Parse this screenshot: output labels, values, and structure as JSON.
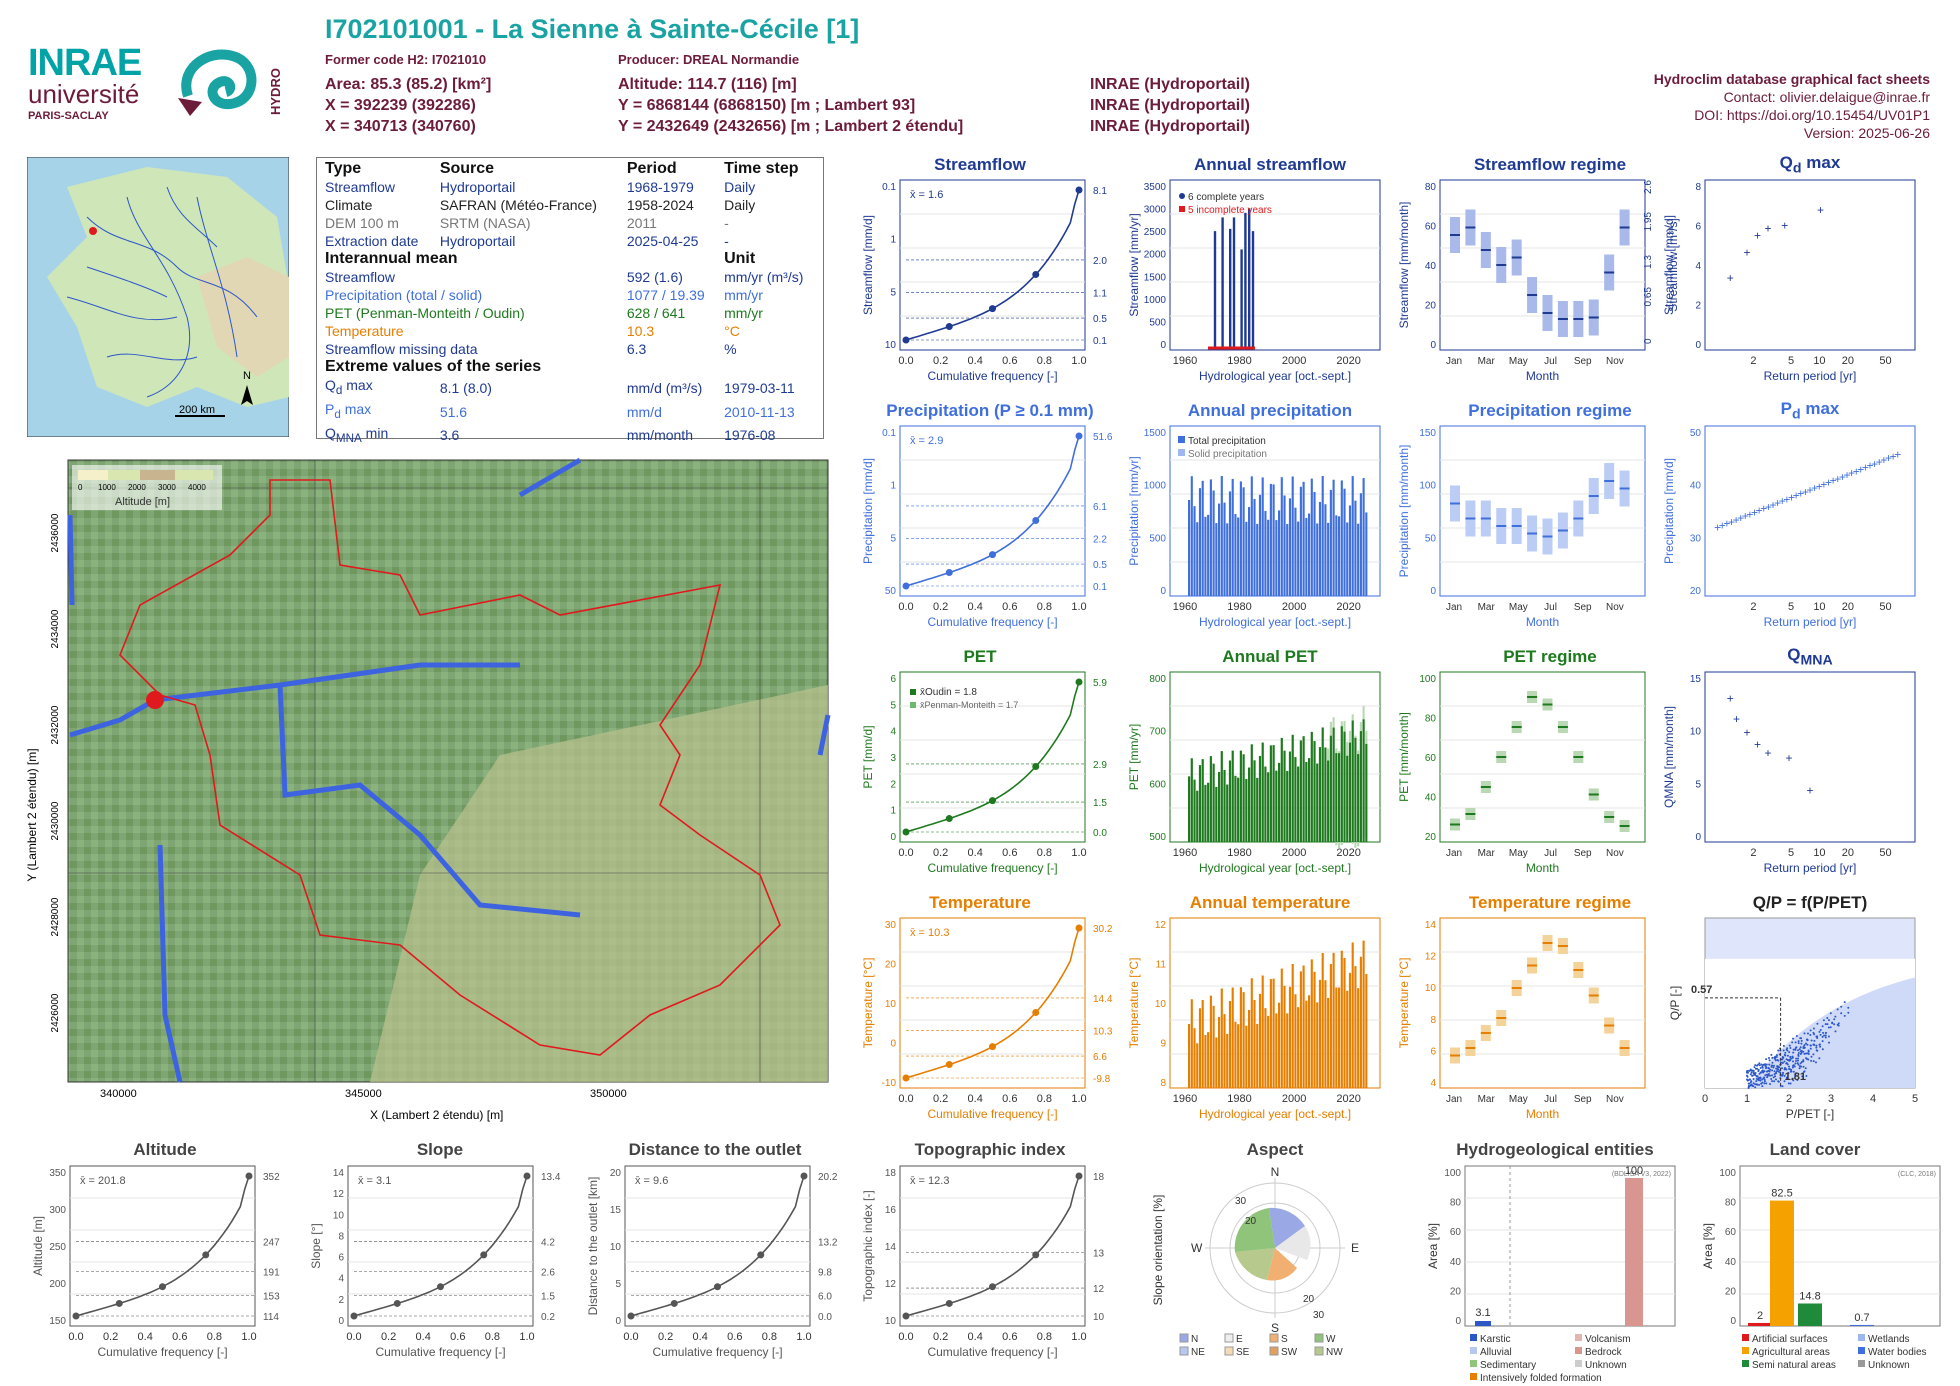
{
  "colors": {
    "streamflow": "#1f3a93",
    "precip": "#3f6fdc",
    "pet": "#1e7a1e",
    "temp": "#e67e00",
    "title_teal": "#1aa3a3",
    "basin": "#e0191d"
  },
  "header": {
    "title": "I702101001 - La Sienne à Sainte-Cécile [1]",
    "former_code": "Former code H2: I7021010",
    "producer": "Producer: DREAL Normandie",
    "area": "Area: 85.3 (85.2) [km²]",
    "altitude": "Altitude: 114.7 (116) [m]",
    "x93": "X = 392239 (392286)",
    "y93": "Y = 6868144 (6868150) [m ; Lambert 93]",
    "x2e": "X = 340713 (340760)",
    "y2e": "Y = 2432649 (2432656) [m ; Lambert 2 étendu]",
    "src1": "INRAE (Hydroportail)",
    "src2": "INRAE (Hydroportail)",
    "src3": "INRAE (Hydroportail)",
    "db": "Hydroclim database graphical fact sheets",
    "contact": "Contact: olivier.delaigue@inrae.fr",
    "doi": "DOI: https://doi.org/10.15454/UV01P1",
    "version": "Version: 2025-06-26"
  },
  "logos": {
    "inrae": "INRAE",
    "universite": "université",
    "paris": "PARIS-SACLAY",
    "hydro": "HYDRO"
  },
  "locmap": {
    "scale": "200 km",
    "north": "N"
  },
  "info": {
    "h_type": "Type",
    "h_source": "Source",
    "h_period": "Period",
    "h_timestep": "Time step",
    "rows": [
      {
        "type": "Streamflow",
        "source": "Hydroportail",
        "period": "1968-1979",
        "step": "Daily"
      },
      {
        "type": "Climate",
        "source": "SAFRAN (Météo-France)",
        "period": "1958-2024",
        "step": "Daily"
      },
      {
        "type": "DEM 100 m",
        "source": "SRTM (NASA)",
        "period": "2011",
        "step": "-"
      },
      {
        "type": "Extraction date",
        "source": "Hydroportail",
        "period": "2025-04-25",
        "step": "-"
      }
    ],
    "h_inter": "Interannual mean",
    "h_unit": "Unit",
    "mean": [
      {
        "k": "Streamflow",
        "v": "592 (1.6)",
        "u": "mm/yr (m³/s)"
      },
      {
        "k": "Precipitation (total / solid)",
        "v": "1077 / 19.39",
        "u": "mm/yr"
      },
      {
        "k": "PET (Penman-Monteith / Oudin)",
        "v": "628 / 641",
        "u": "mm/yr"
      },
      {
        "k": "Temperature",
        "v": "10.3",
        "u": "°C"
      },
      {
        "k": "Streamflow missing data",
        "v": "6.3",
        "u": "%"
      }
    ],
    "h_extreme": "Extreme values of the series",
    "ext": [
      {
        "k": "Q",
        "sub": "d",
        "k2": " max",
        "v": "8.1 (8.0)",
        "u": "mm/d (m³/s)",
        "d": "1979-03-11"
      },
      {
        "k": "P",
        "sub": "d",
        "k2": " max",
        "v": "51.6",
        "u": "mm/d",
        "d": "2010-11-13"
      },
      {
        "k": "Q",
        "sub": "MNA",
        "k2": " min",
        "v": "3.6",
        "u": "mm/month",
        "d": "1976-08"
      }
    ]
  },
  "bigmap": {
    "legend_title": "Altitude [m]",
    "legend_ticks": [
      "0",
      "1000",
      "2000",
      "3000",
      "4000"
    ],
    "xticks": [
      "340000",
      "345000",
      "350000"
    ],
    "yticks": [
      "2436000",
      "2434000",
      "2432000",
      "2430000",
      "2428000",
      "2426000"
    ],
    "xlabel": "X (Lambert 2 étendu) [m]",
    "ylabel": "Y (Lambert 2 étendu) [m]"
  },
  "panels": {
    "streamflow": {
      "title": "Streamflow",
      "mean": "x̄ = 1.6",
      "ylabel": "Streamflow [mm/d]",
      "xlabel": "Cumulative frequency [-]",
      "right": [
        "8.1",
        "2.0",
        "1.1",
        "0.5",
        "0.1"
      ],
      "left": [
        "10",
        "5",
        "1",
        "0.1"
      ]
    },
    "annual_streamflow": {
      "title": "Annual streamflow",
      "ylabel": "Streamflow [mm/yr]",
      "xlabel": "Hydrological year [oct.-sept.]",
      "leg1": "6 complete years",
      "leg2": "5 incomplete years",
      "yt": [
        "0",
        "500",
        "1000",
        "1500",
        "2000",
        "2500",
        "3000",
        "3500"
      ]
    },
    "streamflow_regime": {
      "title": "Streamflow regime",
      "ylabel": "Streamflow [mm/month]",
      "xlabel": "Month",
      "yt": [
        "0",
        "20",
        "40",
        "60",
        "80"
      ],
      "rt": [
        "0",
        "0.65",
        "1.3",
        "1.95",
        "2.6"
      ],
      "rlabel": "Streamflow [m³/s]"
    },
    "qd_max": {
      "title": "Q",
      "sub": "d",
      "title2": " max",
      "ylabel": "Streamflow [mm/d]",
      "xlabel": "Return period [yr]",
      "yt": [
        "0",
        "2",
        "4",
        "6",
        "8"
      ]
    },
    "precipitation": {
      "title": "Precipitation (P ≥ 0.1 mm)",
      "mean": "x̄ = 2.9",
      "ylabel": "Precipitation [mm/d]",
      "xlabel": "Cumulative frequency [-]",
      "right": [
        "51.6",
        "6.1",
        "2.2",
        "0.5",
        "0.1"
      ],
      "left": [
        "50",
        "5",
        "1",
        "0.1"
      ]
    },
    "annual_precipitation": {
      "title": "Annual precipitation",
      "ylabel": "Precipitation [mm/yr]",
      "xlabel": "Hydrological year [oct.-sept.]",
      "leg1": "Total precipitation",
      "leg2": "Solid precipitation",
      "yt": [
        "0",
        "500",
        "1000",
        "1500"
      ]
    },
    "precipitation_regime": {
      "title": "Precipitation regime",
      "ylabel": "Precipitation [mm/month]",
      "xlabel": "Month",
      "yt": [
        "0",
        "50",
        "100",
        "150"
      ]
    },
    "pd_max": {
      "title": "P",
      "sub": "d",
      "title2": " max",
      "ylabel": "Precipitation [mm/d]",
      "xlabel": "Return period [yr]",
      "yt": [
        "20",
        "30",
        "40",
        "50"
      ]
    },
    "pet": {
      "title": "PET",
      "leg1": "x̄Oudin = 1.8",
      "leg2": "x̄Penman-Monteith = 1.7",
      "ylabel": "PET [mm/d]",
      "xlabel": "Cumulative frequency [-]",
      "right": [
        "5.9",
        "2.9",
        "1.5",
        "0.0"
      ],
      "left": [
        "0",
        "1",
        "2",
        "3",
        "4",
        "5",
        "6"
      ]
    },
    "annual_pet": {
      "title": "Annual PET",
      "ylabel": "PET [mm/yr]",
      "xlabel": "Hydrological year [oct.-sept.]",
      "yt": [
        "500",
        "600",
        "700",
        "800"
      ]
    },
    "pet_regime": {
      "title": "PET regime",
      "ylabel": "PET [mm/month]",
      "xlabel": "Month",
      "yt": [
        "20",
        "40",
        "60",
        "80",
        "100"
      ]
    },
    "qmna": {
      "title": "Q",
      "sub": "MNA",
      "title2": "",
      "ylabel": "QMNA [mm/month]",
      "xlabel": "Return period [yr]",
      "yt": [
        "0",
        "5",
        "10",
        "15"
      ]
    },
    "temperature": {
      "title": "Temperature",
      "mean": "x̄ = 10.3",
      "ylabel": "Temperature [°C]",
      "xlabel": "Cumulative frequency [-]",
      "right": [
        "30.2",
        "14.4",
        "10.3",
        "6.6",
        "-9.8"
      ],
      "left": [
        "-10",
        "0",
        "10",
        "20",
        "30"
      ]
    },
    "annual_temperature": {
      "title": "Annual temperature",
      "ylabel": "Temperature [°C]",
      "xlabel": "Hydrological year [oct.-sept.]",
      "yt": [
        "8",
        "9",
        "10",
        "11",
        "12"
      ]
    },
    "temperature_regime": {
      "title": "Temperature regime",
      "ylabel": "Temperature [°C]",
      "xlabel": "Month",
      "yt": [
        "4",
        "6",
        "8",
        "10",
        "12",
        "14"
      ]
    },
    "qp": {
      "title": "Q/P = f(P/PET)",
      "ylabel": "Q/P [-]",
      "xlabel": "P/PET [-]",
      "v1": "0.57",
      "v2": "1.81",
      "xt": [
        "0",
        "1",
        "2",
        "3",
        "4",
        "5"
      ],
      "yt": [
        "0.0",
        "0.2",
        "0.4",
        "0.6",
        "0.8",
        "1.0",
        "1.2"
      ]
    },
    "altitude": {
      "title": "Altitude",
      "mean": "x̄ = 201.8",
      "ylabel": "Altitude [m]",
      "xlabel": "Cumulative frequency [-]",
      "right": [
        "352",
        "247",
        "191",
        "153",
        "114"
      ],
      "left": [
        "150",
        "200",
        "250",
        "300",
        "350"
      ]
    },
    "slope": {
      "title": "Slope",
      "mean": "x̄ = 3.1",
      "ylabel": "Slope [°]",
      "xlabel": "Cumulative frequency [-]",
      "right": [
        "13.4",
        "4.2",
        "2.6",
        "1.5",
        "0.2"
      ],
      "left": [
        "0",
        "2",
        "4",
        "6",
        "8",
        "10",
        "12",
        "14"
      ]
    },
    "distance": {
      "title": "Distance to the outlet",
      "mean": "x̄ = 9.6",
      "ylabel": "Distance to the outlet [km]",
      "xlabel": "Cumulative frequency [-]",
      "right": [
        "20.2",
        "13.2",
        "9.8",
        "6.0",
        "0.0"
      ],
      "left": [
        "0",
        "5",
        "10",
        "15",
        "20"
      ]
    },
    "topo": {
      "title": "Topographic index",
      "mean": "x̄ = 12.3",
      "ylabel": "Topographic index [-]",
      "xlabel": "Cumulative frequency [-]",
      "right": [
        "18",
        "13",
        "12",
        "10"
      ],
      "left": [
        "10",
        "12",
        "14",
        "16",
        "18"
      ]
    },
    "aspect": {
      "title": "Aspect",
      "ylabel": "Slope orientation [%]",
      "dirs": [
        "N",
        "E",
        "S",
        "W"
      ],
      "rings": [
        "10",
        "20",
        "30"
      ],
      "leg": [
        "N",
        "E",
        "S",
        "W",
        "NE",
        "SE",
        "SW",
        "NW"
      ]
    },
    "hydrogeo": {
      "title": "Hydrogeological entities",
      "src": "(BDLISA V3, 2022)",
      "ylabel": "Area [%]",
      "v1": "3.1",
      "v2": "100",
      "yt": [
        "0",
        "20",
        "40",
        "60",
        "80",
        "100"
      ],
      "leg": [
        "Karstic",
        "Volcanism",
        "Alluvial",
        "Bedrock",
        "Sedimentary",
        "Unknown",
        "Intensively folded formation"
      ]
    },
    "landcover": {
      "title": "Land cover",
      "src": "(CLC, 2018)",
      "ylabel": "Area [%]",
      "vals": [
        "2",
        "82.5",
        "14.8",
        "0.7"
      ],
      "yt": [
        "0",
        "20",
        "40",
        "60",
        "80",
        "100"
      ],
      "leg": [
        "Artificial surfaces",
        "Wetlands",
        "Agricultural areas",
        "Water bodies",
        "Semi natural areas",
        "Unknown"
      ]
    }
  },
  "common": {
    "freq_ticks": [
      "0.0",
      "0.2",
      "0.4",
      "0.6",
      "0.8",
      "1.0"
    ],
    "year_ticks": [
      "1960",
      "1980",
      "2000",
      "2020"
    ],
    "months": [
      "Jan",
      "Mar",
      "May",
      "Jul",
      "Sep",
      "Nov"
    ],
    "rp_ticks": [
      "2",
      "5",
      "10",
      "20",
      "50"
    ]
  },
  "chart_data": [
    {
      "type": "line",
      "title": "Streamflow",
      "x": [
        0,
        0.25,
        0.5,
        0.75,
        1.0
      ],
      "y": [
        0.1,
        0.5,
        1.1,
        2.0,
        8.1
      ],
      "ylabel": "Streamflow [mm/d]",
      "xlabel": "Cumulative frequency [-]"
    },
    {
      "type": "bar",
      "title": "Annual streamflow",
      "categories": [
        "1968",
        "1969",
        "1970",
        "1971",
        "1972",
        "1973",
        "1974",
        "1975",
        "1976",
        "1977",
        "1978",
        "1979"
      ],
      "values": [
        0,
        2600,
        0,
        2900,
        0,
        2650,
        2900,
        0,
        2200,
        3000,
        3100,
        2600
      ]
    },
    {
      "type": "line",
      "title": "PET",
      "x": [
        0,
        0.25,
        0.5,
        0.75,
        1.0
      ],
      "y": [
        0.0,
        0.6,
        1.5,
        2.9,
        5.9
      ]
    },
    {
      "type": "line",
      "title": "Temperature",
      "x": [
        0,
        0.25,
        0.5,
        0.75,
        1.0
      ],
      "y": [
        -9.8,
        6.6,
        10.3,
        14.4,
        30.2
      ]
    },
    {
      "type": "bar",
      "title": "Land cover",
      "categories": [
        "Artificial surfaces",
        "Agricultural areas",
        "Semi natural areas",
        "Wetlands"
      ],
      "values": [
        2,
        82.5,
        14.8,
        0.7
      ]
    },
    {
      "type": "bar",
      "title": "Hydrogeological entities",
      "categories": [
        "Karstic",
        "Bedrock"
      ],
      "values": [
        3.1,
        100
      ]
    }
  ]
}
